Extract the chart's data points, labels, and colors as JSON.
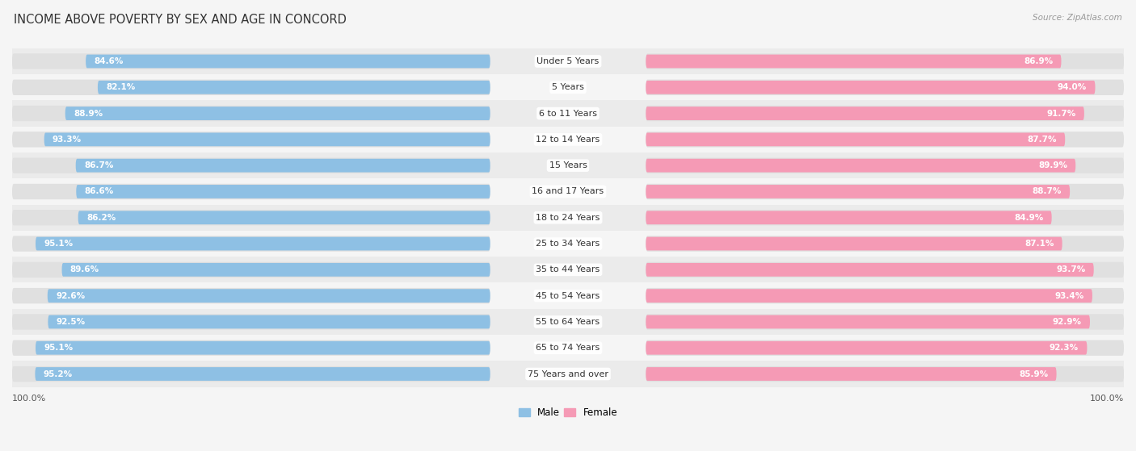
{
  "title": "INCOME ABOVE POVERTY BY SEX AND AGE IN CONCORD",
  "source": "Source: ZipAtlas.com",
  "categories": [
    "Under 5 Years",
    "5 Years",
    "6 to 11 Years",
    "12 to 14 Years",
    "15 Years",
    "16 and 17 Years",
    "18 to 24 Years",
    "25 to 34 Years",
    "35 to 44 Years",
    "45 to 54 Years",
    "55 to 64 Years",
    "65 to 74 Years",
    "75 Years and over"
  ],
  "male_values": [
    84.6,
    82.1,
    88.9,
    93.3,
    86.7,
    86.6,
    86.2,
    95.1,
    89.6,
    92.6,
    92.5,
    95.1,
    95.2
  ],
  "female_values": [
    86.9,
    94.0,
    91.7,
    87.7,
    89.9,
    88.7,
    84.9,
    87.1,
    93.7,
    93.4,
    92.9,
    92.3,
    85.9
  ],
  "male_color": "#8ec0e4",
  "female_color": "#f59ab5",
  "male_label": "Male",
  "female_label": "Female",
  "track_color": "#e0e0e0",
  "bg_color": "#f5f5f5",
  "row_color_even": "#ebebeb",
  "row_color_odd": "#f5f5f5",
  "title_fontsize": 10.5,
  "label_fontsize": 8,
  "value_fontsize": 7.5,
  "axis_label_fontsize": 8,
  "max_val": 100.0
}
